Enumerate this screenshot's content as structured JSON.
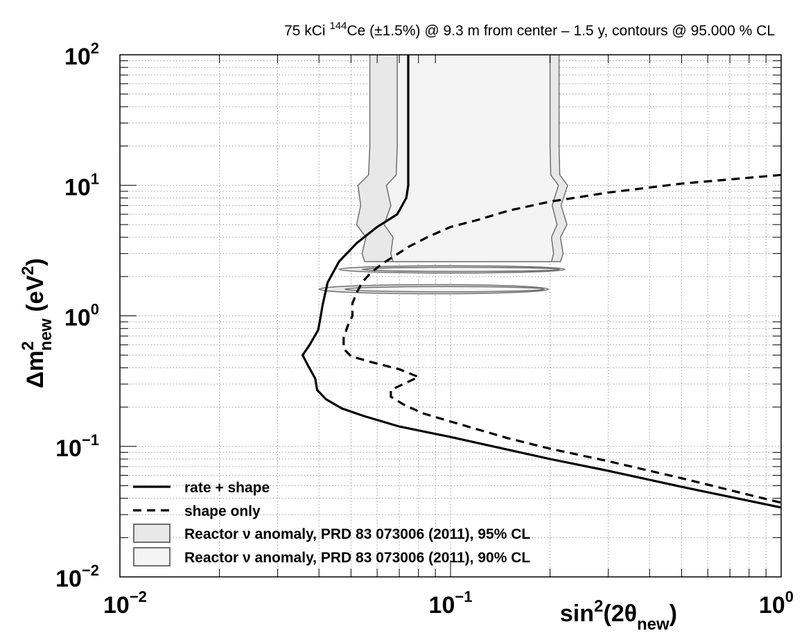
{
  "chart_data": {
    "type": "line",
    "title": {
      "pre": "75  kCi ",
      "sup": "144",
      "post": "Ce (±1.5%) @ 9.3 m from center – 1.5 y, contours @ 95.000 % CL"
    },
    "x_axis": {
      "label_main": "sin",
      "label_sup": "2",
      "label_mid": "(2θ",
      "label_sub": "new",
      "label_end": ")",
      "scale": "log",
      "range": [
        0.01,
        1
      ],
      "ticks": [
        {
          "value": 0.01,
          "base": "10",
          "exp": "−2"
        },
        {
          "value": 0.1,
          "base": "10",
          "exp": "−1"
        },
        {
          "value": 1,
          "base": "10",
          "exp": "0"
        }
      ]
    },
    "y_axis": {
      "label_main": "Δm",
      "label_sup": "2",
      "label_sub": "new",
      "label_unit_pre": " (eV",
      "label_unit_sup": "2",
      "label_unit_post": ")",
      "scale": "log",
      "range": [
        0.01,
        100
      ],
      "ticks": [
        {
          "value": 0.01,
          "base": "10",
          "exp": "−2"
        },
        {
          "value": 0.1,
          "base": "10",
          "exp": "−1"
        },
        {
          "value": 1,
          "base": "10",
          "exp": "0"
        },
        {
          "value": 10,
          "base": "10",
          "exp": "1"
        },
        {
          "value": 100,
          "base": "10",
          "exp": "2"
        }
      ]
    },
    "grid": true,
    "legend_position": "bottom-left",
    "colors": {
      "rate_shape": "#000000",
      "shape_only": "#000000",
      "region95_fill": "#e8e8e8",
      "region90_fill": "#f4f4f4",
      "region_stroke": "#6f6f6f",
      "grid": "#9a9a9a"
    },
    "series": [
      {
        "name": "rate + shape",
        "style": "solid",
        "points": [
          [
            0.0745,
            100
          ],
          [
            0.0745,
            30
          ],
          [
            0.0745,
            10
          ],
          [
            0.0735,
            8
          ],
          [
            0.069,
            6
          ],
          [
            0.06,
            4.8
          ],
          [
            0.052,
            3.6
          ],
          [
            0.046,
            2.6
          ],
          [
            0.0425,
            1.8
          ],
          [
            0.041,
            1.2
          ],
          [
            0.0405,
            1.0
          ],
          [
            0.0398,
            0.78
          ],
          [
            0.0375,
            0.6
          ],
          [
            0.0357,
            0.5
          ],
          [
            0.037,
            0.42
          ],
          [
            0.039,
            0.33
          ],
          [
            0.0395,
            0.27
          ],
          [
            0.042,
            0.23
          ],
          [
            0.047,
            0.195
          ],
          [
            0.055,
            0.17
          ],
          [
            0.07,
            0.142
          ],
          [
            0.1,
            0.118
          ],
          [
            0.15,
            0.094
          ],
          [
            0.2,
            0.08
          ],
          [
            0.3,
            0.065
          ],
          [
            0.5,
            0.049
          ],
          [
            0.7,
            0.041
          ],
          [
            1.0,
            0.034
          ]
        ]
      },
      {
        "name": "shape only",
        "style": "dashed",
        "points": [
          [
            1.0,
            12.0
          ],
          [
            0.5,
            10.3
          ],
          [
            0.3,
            8.8
          ],
          [
            0.2,
            7.5
          ],
          [
            0.15,
            6.4
          ],
          [
            0.12,
            5.4
          ],
          [
            0.1,
            4.8
          ],
          [
            0.085,
            4.0
          ],
          [
            0.075,
            3.4
          ],
          [
            0.068,
            2.9
          ],
          [
            0.062,
            2.5
          ],
          [
            0.057,
            2.1
          ],
          [
            0.054,
            1.8
          ],
          [
            0.052,
            1.5
          ],
          [
            0.0505,
            1.25
          ],
          [
            0.0505,
            1.0
          ],
          [
            0.049,
            0.85
          ],
          [
            0.0475,
            0.68
          ],
          [
            0.0475,
            0.56
          ],
          [
            0.05,
            0.49
          ],
          [
            0.058,
            0.44
          ],
          [
            0.07,
            0.39
          ],
          [
            0.08,
            0.34
          ],
          [
            0.072,
            0.3
          ],
          [
            0.066,
            0.27
          ],
          [
            0.066,
            0.24
          ],
          [
            0.072,
            0.21
          ],
          [
            0.082,
            0.18
          ],
          [
            0.1,
            0.155
          ],
          [
            0.15,
            0.115
          ],
          [
            0.2,
            0.096
          ],
          [
            0.3,
            0.077
          ],
          [
            0.5,
            0.057
          ],
          [
            1.0,
            0.037
          ]
        ]
      }
    ],
    "regions": [
      {
        "name": "Reactor ν anomaly, PRD 83 073006 (2011), 95% CL",
        "fill_key": "region95_fill",
        "bands": [
          {
            "left": [
              [
                0.057,
                100
              ],
              [
                0.057,
                20
              ],
              [
                0.0565,
                12
              ],
              [
                0.0525,
                10
              ],
              [
                0.0535,
                7
              ],
              [
                0.052,
                5
              ],
              [
                0.0555,
                4
              ],
              [
                0.054,
                3
              ],
              [
                0.055,
                2.6
              ]
            ],
            "right": [
              [
                0.213,
                100
              ],
              [
                0.213,
                20
              ],
              [
                0.214,
                12
              ],
              [
                0.226,
                10
              ],
              [
                0.216,
                7
              ],
              [
                0.225,
                5
              ],
              [
                0.215,
                4
              ],
              [
                0.219,
                3
              ],
              [
                0.215,
                2.6
              ]
            ]
          }
        ],
        "ellipses": [
          {
            "x_min": 0.046,
            "x_max": 0.222,
            "y_center": 2.27,
            "y_half_decades": 0.028
          },
          {
            "x_min": 0.04,
            "x_max": 0.198,
            "y_center": 1.6,
            "y_half_decades": 0.035
          }
        ]
      },
      {
        "name": "Reactor ν anomaly, PRD 83 073006 (2011), 90% CL",
        "fill_key": "region90_fill",
        "bands": [
          {
            "left": [
              [
                0.069,
                100
              ],
              [
                0.069,
                20
              ],
              [
                0.0685,
                12
              ],
              [
                0.064,
                10
              ],
              [
                0.066,
                7
              ],
              [
                0.063,
                5
              ],
              [
                0.067,
                4
              ],
              [
                0.066,
                3
              ],
              [
                0.067,
                2.6
              ]
            ],
            "right": [
              [
                0.2,
                100
              ],
              [
                0.2,
                20
              ],
              [
                0.201,
                12
              ],
              [
                0.212,
                10
              ],
              [
                0.203,
                7
              ],
              [
                0.21,
                5
              ],
              [
                0.202,
                4
              ],
              [
                0.205,
                3
              ],
              [
                0.202,
                2.6
              ]
            ]
          }
        ],
        "ellipses": [
          {
            "x_min": 0.054,
            "x_max": 0.214,
            "y_center": 2.27,
            "y_half_decades": 0.016
          },
          {
            "x_min": 0.048,
            "x_max": 0.192,
            "y_center": 1.6,
            "y_half_decades": 0.02
          }
        ]
      }
    ],
    "legend": [
      {
        "label": "rate + shape",
        "kind": "solid"
      },
      {
        "label": "shape only",
        "kind": "dashed"
      },
      {
        "label": "Reactor ν anomaly, PRD 83 073006 (2011), 95% CL",
        "kind": "box95"
      },
      {
        "label": "Reactor ν anomaly, PRD 83 073006 (2011), 90% CL",
        "kind": "box90"
      }
    ]
  }
}
